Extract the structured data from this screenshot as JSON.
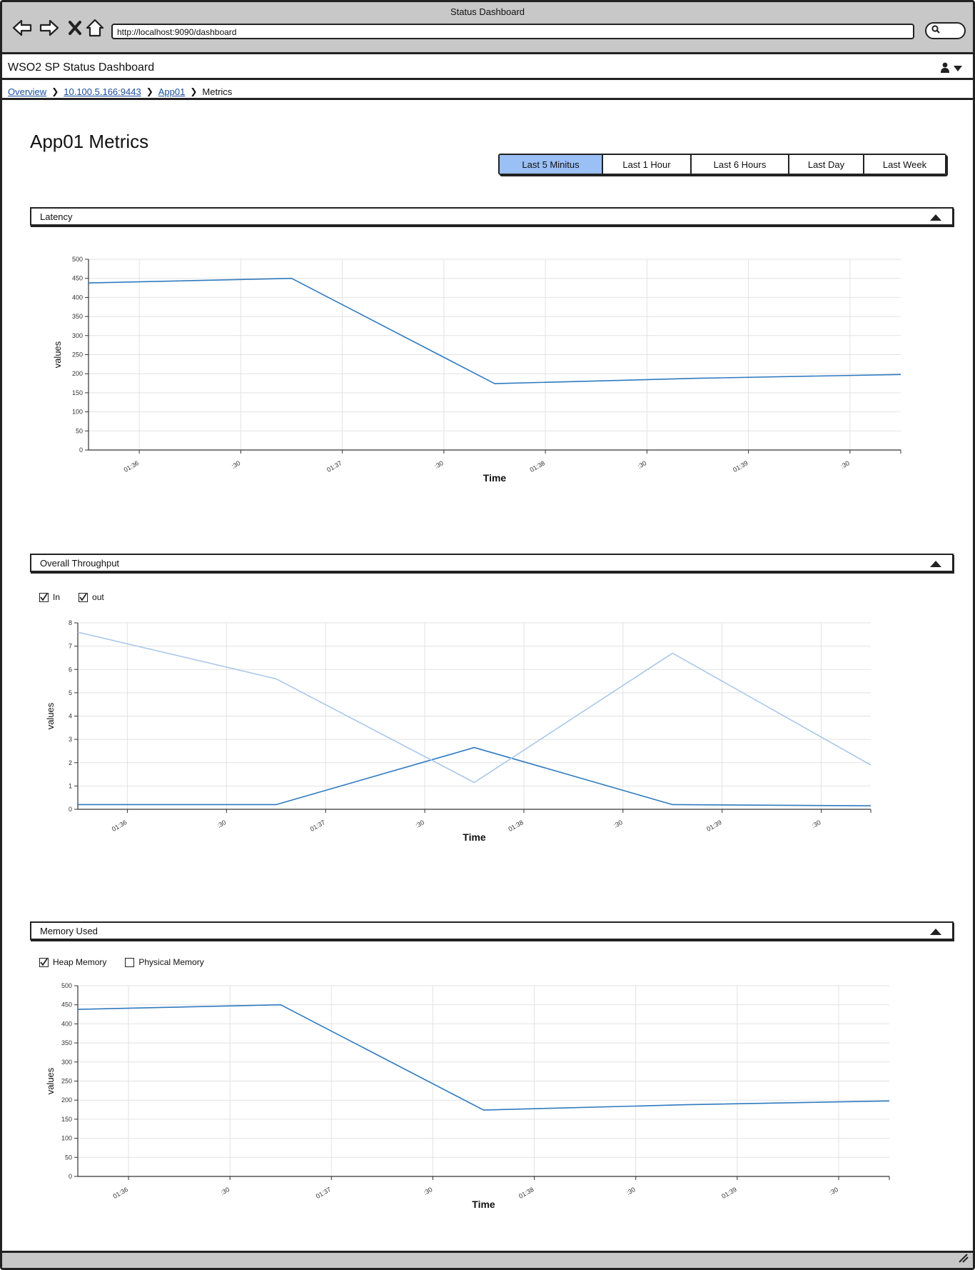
{
  "window": {
    "title": "Status Dashboard"
  },
  "browser": {
    "url": "http://localhost:9090/dashboard",
    "icons": [
      "back-arrow-icon",
      "forward-arrow-icon",
      "close-icon",
      "home-icon",
      "search-icon"
    ]
  },
  "app": {
    "title": "WSO2 SP Status Dashboard",
    "user_icon": "user-icon",
    "menu_icon": "chevron-down-icon"
  },
  "breadcrumb": {
    "items": [
      {
        "label": "Overview",
        "link": true
      },
      {
        "label": "10.100.5.166:9443",
        "link": true
      },
      {
        "label": "App01",
        "link": true
      },
      {
        "label": "Metrics",
        "link": false
      }
    ]
  },
  "page": {
    "title": "App01 Metrics"
  },
  "time_ranges": {
    "selected": "Last 5 Minitus",
    "options": [
      "Last 5 Minitus",
      "Last 1 Hour",
      "Last 6 Hours",
      "Last Day",
      "Last Week"
    ]
  },
  "sections": {
    "latency": {
      "title": "Latency"
    },
    "throughput": {
      "title": "Overall Throughput",
      "toggles": [
        {
          "label": "In",
          "checked": true
        },
        {
          "label": "out",
          "checked": true
        }
      ]
    },
    "memory": {
      "title": "Memory Used",
      "toggles": [
        {
          "label": "Heap Memory",
          "checked": true
        },
        {
          "label": "Physical Memory",
          "checked": false
        }
      ]
    }
  },
  "colors": {
    "accent": "#9ac0f5",
    "series_dark": "#2e7ac0",
    "series_light": "#a9c8ea",
    "grid": "#e2e2e2",
    "link": "#1b4f9e"
  },
  "chart_data": [
    {
      "id": "latency",
      "type": "line",
      "xlabel": "Time",
      "ylabel": "values",
      "ylim": [
        0,
        500
      ],
      "yticks": [
        0,
        50,
        100,
        150,
        200,
        250,
        300,
        350,
        400,
        450,
        500
      ],
      "xlim": [
        0,
        4
      ],
      "xticks": [
        0.25,
        0.75,
        1.25,
        1.75,
        2.25,
        2.75,
        3.25,
        3.75
      ],
      "xtick_labels": [
        "01:36",
        ":30",
        "01:37",
        ":30",
        "01:38",
        ":30",
        "01:39",
        ":30"
      ],
      "grid": true,
      "series": [
        {
          "x": [
            0,
            1,
            2,
            3,
            4
          ],
          "values": [
            438,
            450,
            174,
            188,
            198
          ],
          "color": "#2e7ac0"
        }
      ]
    },
    {
      "id": "throughput",
      "type": "line",
      "xlabel": "Time",
      "ylabel": "values",
      "ylim": [
        0,
        8
      ],
      "yticks": [
        0,
        1,
        2,
        3,
        4,
        5,
        6,
        7,
        8
      ],
      "xlim": [
        0,
        4
      ],
      "xticks": [
        0.25,
        0.75,
        1.25,
        1.75,
        2.25,
        2.75,
        3.25,
        3.75
      ],
      "xtick_labels": [
        "01:36",
        ":30",
        "01:37",
        ":30",
        "01:38",
        ":30",
        "01:39",
        ":30"
      ],
      "grid": true,
      "series": [
        {
          "name": "In",
          "x": [
            0,
            1,
            2,
            3,
            4
          ],
          "values": [
            0.2,
            0.2,
            2.65,
            0.2,
            0.15
          ],
          "color": "#2e7ac0"
        },
        {
          "name": "out",
          "x": [
            0,
            1,
            2,
            3,
            4
          ],
          "values": [
            7.6,
            5.6,
            1.15,
            6.7,
            1.9
          ],
          "color": "#a9c8ea"
        }
      ]
    },
    {
      "id": "memory",
      "type": "line",
      "xlabel": "Time",
      "ylabel": "values",
      "ylim": [
        0,
        500
      ],
      "yticks": [
        0,
        50,
        100,
        150,
        200,
        250,
        300,
        350,
        400,
        450,
        500
      ],
      "xlim": [
        0,
        4
      ],
      "xticks": [
        0.25,
        0.75,
        1.25,
        1.75,
        2.25,
        2.75,
        3.25,
        3.75
      ],
      "xtick_labels": [
        "01:36",
        ":30",
        "01:37",
        ":30",
        "01:38",
        ":30",
        "01:39",
        ":30"
      ],
      "grid": true,
      "series": [
        {
          "name": "Heap Memory",
          "x": [
            0,
            1,
            2,
            3,
            4
          ],
          "values": [
            438,
            450,
            174,
            188,
            198
          ],
          "color": "#2e7ac0"
        }
      ]
    }
  ]
}
